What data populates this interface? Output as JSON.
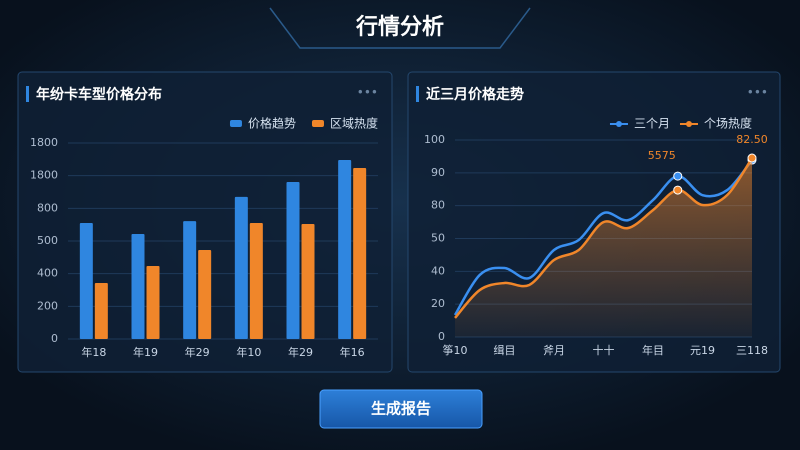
{
  "title": "行情分析",
  "button": "生成报告",
  "chart_data": [
    {
      "type": "bar",
      "title": "年纷卡车型价格分布",
      "categories": [
        "年18",
        "年19",
        "年29",
        "年10",
        "年29",
        "年16"
      ],
      "series": [
        {
          "name": "价格趋势",
          "color": "#2f86e0",
          "values": [
            710,
            643,
            722,
            870,
            961,
            1096
          ]
        },
        {
          "name": "区域热度",
          "color": "#f0862a",
          "values": [
            343,
            447,
            545,
            710,
            704,
            1047
          ]
        }
      ],
      "ylim": [
        0,
        1200
      ],
      "yticks": [
        0,
        200,
        400,
        {
          "value": 600,
          "label": "500"
        },
        800,
        {
          "value": 1000,
          "label": "1800"
        },
        {
          "value": 1200,
          "label": "1800"
        }
      ],
      "grid": true,
      "legend": "top-right"
    },
    {
      "type": "line",
      "title": "近三月价格走势",
      "categories": [
        "筝10",
        null,
        "缉目",
        null,
        "斧月",
        null,
        "十十",
        null,
        "年目",
        null,
        "元19",
        null,
        "三118"
      ],
      "series": [
        {
          "name": "三个月",
          "color": "#3a8ff0",
          "values": [
            13.4,
            37.8,
            42.0,
            35.9,
            53.0,
            59.1,
            75.5,
            71.2,
            83.4,
            98.0,
            86.4,
            89.5,
            107.8
          ]
        },
        {
          "name": "个场热度",
          "color": "#f0862a",
          "values": [
            11.6,
            28.6,
            32.9,
            31.7,
            46.9,
            53.0,
            70.0,
            66.4,
            77.3,
            89.5,
            80.4,
            86.5,
            109.0
          ]
        }
      ],
      "annotations": [
        "5575",
        "82.50"
      ],
      "ylim": [
        0,
        120
      ],
      "yticks": [
        0,
        20,
        40,
        {
          "value": 60,
          "label": "50"
        },
        80,
        {
          "value": 100,
          "label": "90"
        },
        {
          "value": 120,
          "label": "100"
        }
      ],
      "grid": true,
      "legend": "top-right",
      "area": true
    }
  ]
}
